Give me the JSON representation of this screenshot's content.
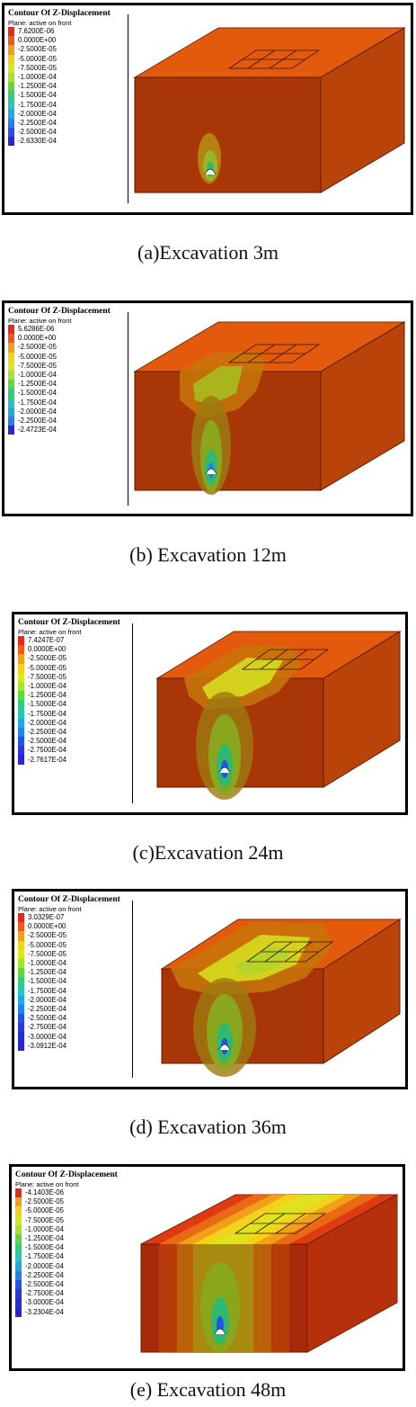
{
  "legend_title": "Contour Of Z-Displacement",
  "legend_subtitle": "Plane: active on front",
  "panels": [
    {
      "caption": "(a)Excavation 3m",
      "legend_values": [
        "7.6200E-06",
        "0.0000E+00",
        "-2.5000E-05",
        "-5.0000E-05",
        "-7.5000E-05",
        "-1.0000E-04",
        "-1.2500E-04",
        "-1.5000E-04",
        "-1.7500E-04",
        "-2.0000E-04",
        "-2.2500E-04",
        "-2.5000E-04",
        "-2.6330E-04"
      ],
      "legend_colors": [
        "#e52a1c",
        "#ef5a1a",
        "#f0a019",
        "#f3d21a",
        "#d9e81c",
        "#a9e22d",
        "#5fd83a",
        "#2fcf7a",
        "#22c8bf",
        "#1fa8e8",
        "#2380ee",
        "#2553e6",
        "#2b24d6"
      ]
    },
    {
      "caption": "(b) Excavation 12m",
      "legend_values": [
        "5.6286E-06",
        "0.0000E+00",
        "-2.5000E-05",
        "-5.0000E-05",
        "-7.5000E-05",
        "-1.0000E-04",
        "-1.2500E-04",
        "-1.5000E-04",
        "-1.7500E-04",
        "-2.0000E-04",
        "-2.2500E-04",
        "-2.4723E-04"
      ],
      "legend_colors": [
        "#e52a1c",
        "#ef5a1a",
        "#f0a019",
        "#f3d21a",
        "#d9e81c",
        "#a9e22d",
        "#5fd83a",
        "#2fcf7a",
        "#22c8bf",
        "#1fa8e8",
        "#2380ee",
        "#2b24d6"
      ]
    },
    {
      "caption": "(c)Excavation 24m",
      "legend_values": [
        "7.4247E-07",
        "0.0000E+00",
        "-2.5000E-05",
        "-5.0000E-05",
        "-7.5000E-05",
        "-1.0000E-04",
        "-1.2500E-04",
        "-1.5000E-04",
        "-1.7500E-04",
        "-2.0000E-04",
        "-2.2500E-04",
        "-2.5000E-04",
        "-2.7500E-04",
        "-2.7617E-04"
      ],
      "legend_colors": [
        "#e52a1c",
        "#ef5a1a",
        "#f0a019",
        "#f3d21a",
        "#d9e81c",
        "#a9e22d",
        "#5fd83a",
        "#2fcf7a",
        "#22c8bf",
        "#1fa8e8",
        "#2380ee",
        "#2553e6",
        "#2b36de",
        "#2b24d6"
      ]
    },
    {
      "caption": "(d) Excavation 36m",
      "legend_values": [
        "3.0329E-07",
        "0.0000E+00",
        "-2.5000E-05",
        "-5.0000E-05",
        "-7.5000E-05",
        "-1.0000E-04",
        "-1.2500E-04",
        "-1.5000E-04",
        "-1.7500E-04",
        "-2.0000E-04",
        "-2.2500E-04",
        "-2.5000E-04",
        "-2.7500E-04",
        "-3.0000E-04",
        "-3.0912E-04"
      ],
      "legend_colors": [
        "#e52a1c",
        "#ef5a1a",
        "#f0a019",
        "#f3d21a",
        "#d9e81c",
        "#a9e22d",
        "#5fd83a",
        "#2fcf7a",
        "#22c8bf",
        "#1fa8e8",
        "#2380ee",
        "#2553e6",
        "#2b36de",
        "#2b2ad8",
        "#2b24d6"
      ]
    },
    {
      "caption": "(e) Excavation 48m",
      "legend_values": [
        "-4.1403E-06",
        "-2.5000E-05",
        "-5.0000E-05",
        "-7.5000E-05",
        "-1.0000E-04",
        "-1.2500E-04",
        "-1.5000E-04",
        "-1.7500E-04",
        "-2.0000E-04",
        "-2.2500E-04",
        "-2.5000E-04",
        "-2.7500E-04",
        "-3.0000E-04",
        "-3.2304E-04"
      ],
      "legend_colors": [
        "#e52a1c",
        "#f0a019",
        "#f3d21a",
        "#d9e81c",
        "#a9e22d",
        "#5fd83a",
        "#2fcf7a",
        "#22c8bf",
        "#1fa8e8",
        "#2380ee",
        "#2553e6",
        "#2b36de",
        "#2b2ad8",
        "#2b24d6"
      ]
    }
  ]
}
